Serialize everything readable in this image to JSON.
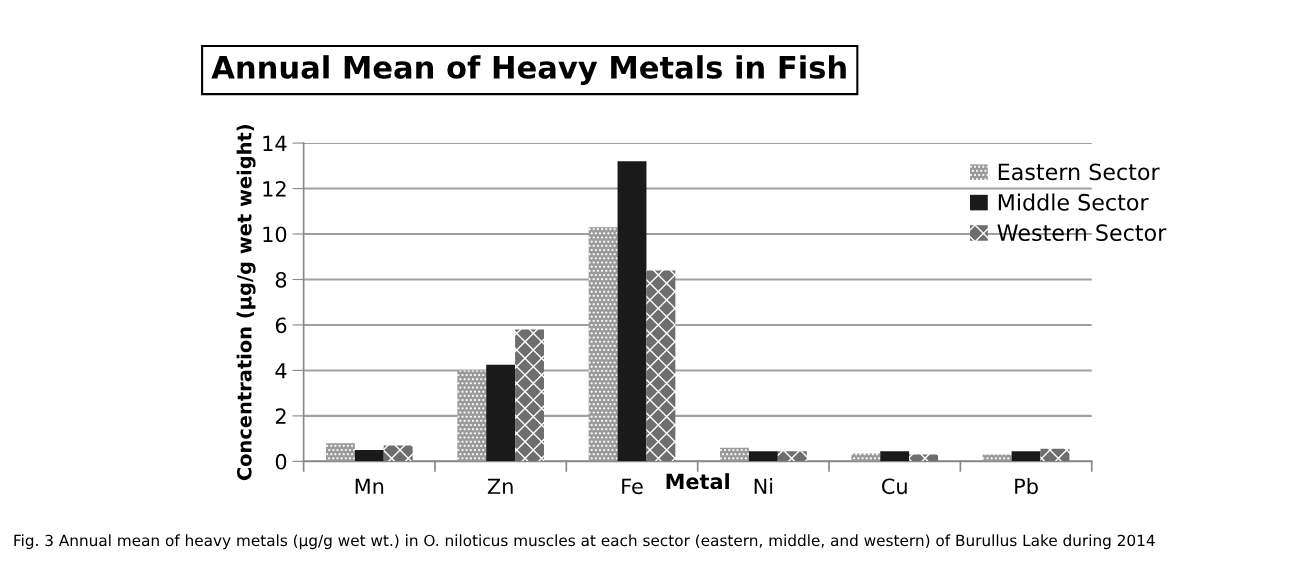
{
  "chart_data": {
    "type": "bar",
    "title": "Annual Mean of Heavy Metals in Fish",
    "xlabel": "Metal",
    "ylabel": "Concentration (µg/g wet weight)",
    "categories": [
      "Mn",
      "Zn",
      "Fe",
      "Ni",
      "Cu",
      "Pb"
    ],
    "series": [
      {
        "name": "Eastern Sector",
        "color": "#9a9a9a",
        "values": [
          0.8,
          4.0,
          10.3,
          0.6,
          0.35,
          0.3
        ]
      },
      {
        "name": "Middle Sector",
        "color": "#1a1a1a",
        "values": [
          0.5,
          4.25,
          13.2,
          0.45,
          0.45,
          0.45
        ]
      },
      {
        "name": "Western Sector",
        "color": "#6e6e6e",
        "values": [
          0.7,
          5.8,
          8.4,
          0.45,
          0.3,
          0.55
        ]
      }
    ],
    "ylim": [
      0,
      14
    ],
    "yticks": [
      0,
      2,
      4,
      6,
      8,
      10,
      12,
      14
    ],
    "grid": "y",
    "legend": "top right",
    "annotations": [
      "Fig. 3 Annual mean of heavy metals (µg/g wet wt.) in O. niloticus muscles at each sector (eastern, middle, and western) of Burullus Lake during 2014"
    ]
  }
}
